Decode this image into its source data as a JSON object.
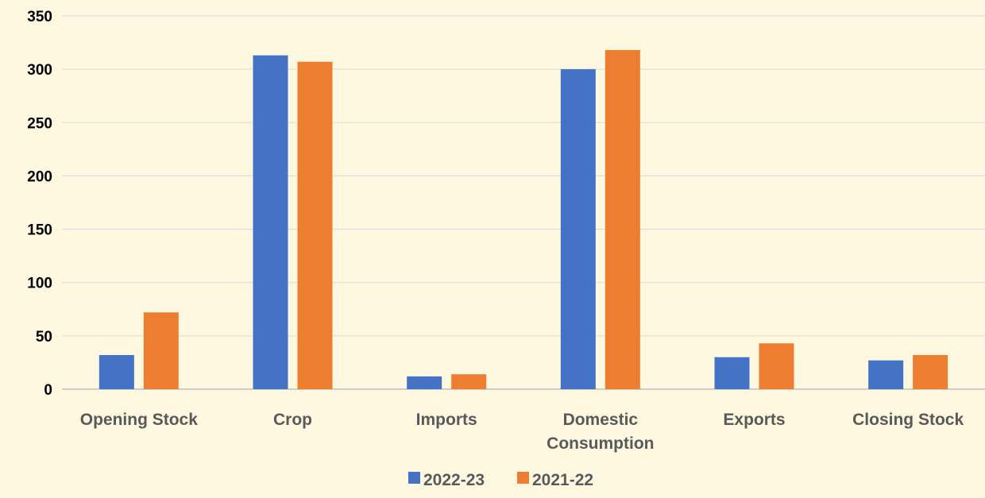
{
  "chart_data": {
    "type": "bar",
    "title": "",
    "xlabel": "",
    "ylabel": "",
    "categories": [
      [
        "Opening Stock"
      ],
      [
        "Crop"
      ],
      [
        "Imports"
      ],
      [
        "Domestic",
        "Consumption"
      ],
      [
        "Exports"
      ],
      [
        "Closing Stock"
      ]
    ],
    "series": [
      {
        "name": "2022-23",
        "values": [
          32,
          313,
          12,
          300,
          30,
          27
        ]
      },
      {
        "name": "2021-22",
        "values": [
          72,
          307,
          14,
          318,
          43,
          32
        ]
      }
    ],
    "ylim": [
      0,
      350
    ],
    "yticks": [
      "0",
      "50",
      "100",
      "150",
      "200",
      "250",
      "300",
      "350"
    ],
    "grid": true,
    "legend_position": "bottom",
    "colors": {
      "series": [
        "#4472c4",
        "#ed7d31"
      ],
      "background": "#fff8e1",
      "grid": "#d9d9d9",
      "axis": "#bfbfbf"
    }
  }
}
